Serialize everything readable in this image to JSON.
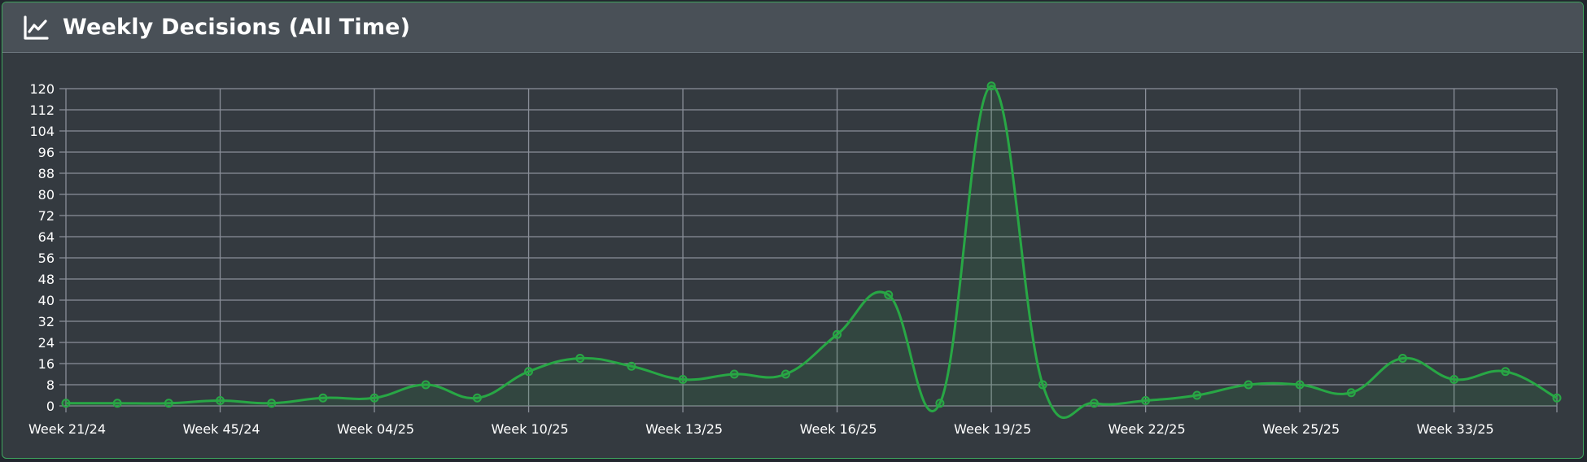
{
  "card": {
    "title": "Weekly Decisions (All Time)",
    "icon": "line-chart-icon"
  },
  "colors": {
    "line": "#28a745",
    "fill": "rgba(40,167,69,0.12)",
    "grid": "#8a8f99",
    "tick_text": "#ffffff",
    "background": "#343a40",
    "header": "#495057"
  },
  "chart_data": {
    "type": "line",
    "title": "Weekly Decisions (All Time)",
    "xlabel": "",
    "ylabel": "",
    "ylim": [
      0,
      120
    ],
    "yticks": [
      0,
      8,
      16,
      24,
      32,
      40,
      48,
      56,
      64,
      72,
      80,
      88,
      96,
      104,
      112,
      120
    ],
    "grid": true,
    "legend": "none",
    "x_tick_labels": [
      "Week 21/24",
      "Week 45/24",
      "Week 04/25",
      "Week 10/25",
      "Week 13/25",
      "Week 16/25",
      "Week 19/25",
      "Week 22/25",
      "Week 25/25",
      "Week 33/25"
    ],
    "x_tick_every": 3,
    "series": [
      {
        "values": [
          1,
          1,
          1,
          2,
          1,
          3,
          3,
          8,
          3,
          13,
          18,
          15,
          10,
          12,
          12,
          27,
          42,
          1,
          121,
          8,
          1,
          2,
          4,
          8,
          8,
          5,
          18,
          10,
          13,
          3
        ]
      }
    ]
  }
}
